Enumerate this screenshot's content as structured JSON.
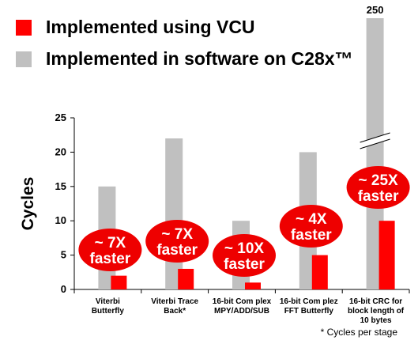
{
  "legend": [
    {
      "label": "Implemented using VCU",
      "color": "#ff0000"
    },
    {
      "label": "Implemented in software on C28x™",
      "color": "#c0c0c0"
    }
  ],
  "footnote": "* Cycles per stage",
  "chart_data": {
    "type": "bar",
    "ylabel": "Cycles",
    "ylim": [
      0,
      25
    ],
    "yticks": [
      0,
      5,
      10,
      15,
      20,
      25
    ],
    "grid": false,
    "axis_break": {
      "category_index": 4,
      "label": "250"
    },
    "categories": [
      [
        "Viterbi",
        "Butterfly"
      ],
      [
        "Viterbi Trace",
        "Back*"
      ],
      [
        "16-bit Com plex",
        "MPY/ADD/SUB"
      ],
      [
        "16-bit Com plez",
        "FFT Butterfly"
      ],
      [
        "16-bit CRC for",
        "block length of",
        "10 bytes"
      ]
    ],
    "series": [
      {
        "name": "Implemented in software on C28x™",
        "color": "#c0c0c0",
        "values": [
          15,
          22,
          10,
          20,
          250
        ]
      },
      {
        "name": "Implemented using VCU",
        "color": "#ff0000",
        "values": [
          2,
          3,
          1,
          5,
          10
        ]
      }
    ],
    "annotations": [
      {
        "category_index": 0,
        "lines": [
          "~ 7X",
          "faster"
        ]
      },
      {
        "category_index": 1,
        "lines": [
          "~ 7X",
          "faster"
        ]
      },
      {
        "category_index": 2,
        "lines": [
          "~ 10X",
          "faster"
        ]
      },
      {
        "category_index": 3,
        "lines": [
          "~ 4X",
          "faster"
        ]
      },
      {
        "category_index": 4,
        "lines": [
          "~ 25X",
          "faster"
        ]
      }
    ]
  }
}
